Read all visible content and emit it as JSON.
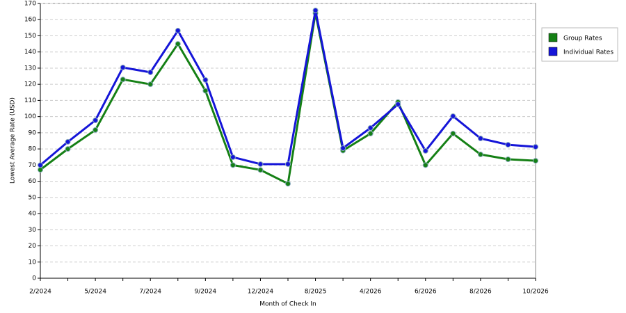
{
  "chart_data": {
    "type": "line",
    "x_label": "Month of Check In",
    "y_label": "Lowest Average Rate (USD)",
    "categories": [
      "2/2024",
      null,
      "5/2024",
      null,
      "7/2024",
      null,
      "9/2024",
      null,
      "12/2024",
      null,
      "8/2025",
      null,
      "4/2026",
      null,
      "6/2026",
      null,
      "8/2026",
      null,
      "10/2026"
    ],
    "series": [
      {
        "name": "Group Rates",
        "color": "#158015",
        "values": [
          67.1,
          80,
          91.7,
          123,
          120,
          145,
          116,
          70,
          67,
          58.5,
          164,
          79,
          89.5,
          109,
          70,
          89.5,
          76.6,
          73.6,
          72.7
        ]
      },
      {
        "name": "Individual Rates",
        "color": "#1515d8",
        "values": [
          70,
          84.4,
          97.7,
          130.4,
          127.4,
          153.2,
          122.7,
          74.9,
          70.6,
          70.6,
          165.7,
          80.5,
          93,
          107.6,
          78.8,
          100.3,
          86.5,
          82.6,
          81.3
        ]
      }
    ],
    "ylim": [
      0,
      170
    ],
    "yticks": [
      0,
      10,
      20,
      30,
      40,
      50,
      60,
      70,
      80,
      90,
      100,
      110,
      120,
      130,
      140,
      150,
      160,
      170
    ],
    "grid": true,
    "legend": "right"
  }
}
